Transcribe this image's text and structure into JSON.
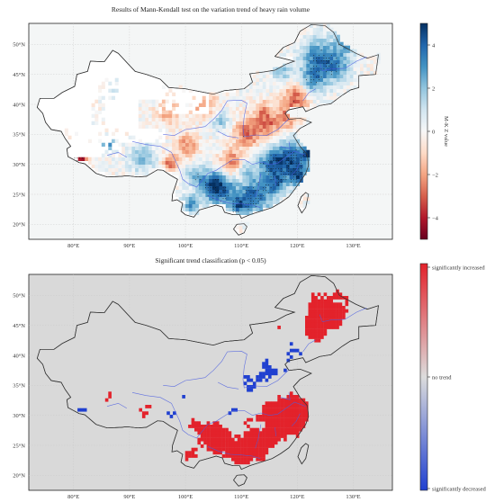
{
  "top_panel": {
    "title": "Results of Mann-Kendall test on the variation trend of heavy rain volume",
    "colorbar": {
      "label": "M-K Z value",
      "ticks": [
        "4",
        "2",
        "0",
        "−2",
        "−4"
      ],
      "range": [
        -5,
        5
      ],
      "colormap": "RdBu",
      "low_color": "#67001f",
      "mid_color": "#f7f7f7",
      "high_color": "#053061"
    }
  },
  "bottom_panel": {
    "title": "Significant trend classification (p < 0.05)",
    "colorbar": {
      "labels": [
        "significantly increased",
        "no trend",
        "significantly decreased"
      ],
      "increased_color": "#e3222b",
      "none_color": "#dcdcdc",
      "decreased_color": "#2040d0"
    }
  },
  "lat_ticks": [
    "50°N",
    "45°N",
    "40°N",
    "35°N",
    "30°N",
    "25°N",
    "20°N"
  ],
  "lon_ticks": [
    "80°E",
    "90°E",
    "100°E",
    "110°E",
    "120°E",
    "130°E"
  ],
  "map": {
    "ocean_color_top": "#f4f6f6",
    "ocean_color_bottom": "#d9d9d9",
    "border_color": "#333333",
    "river_color": "#4a5de0"
  }
}
